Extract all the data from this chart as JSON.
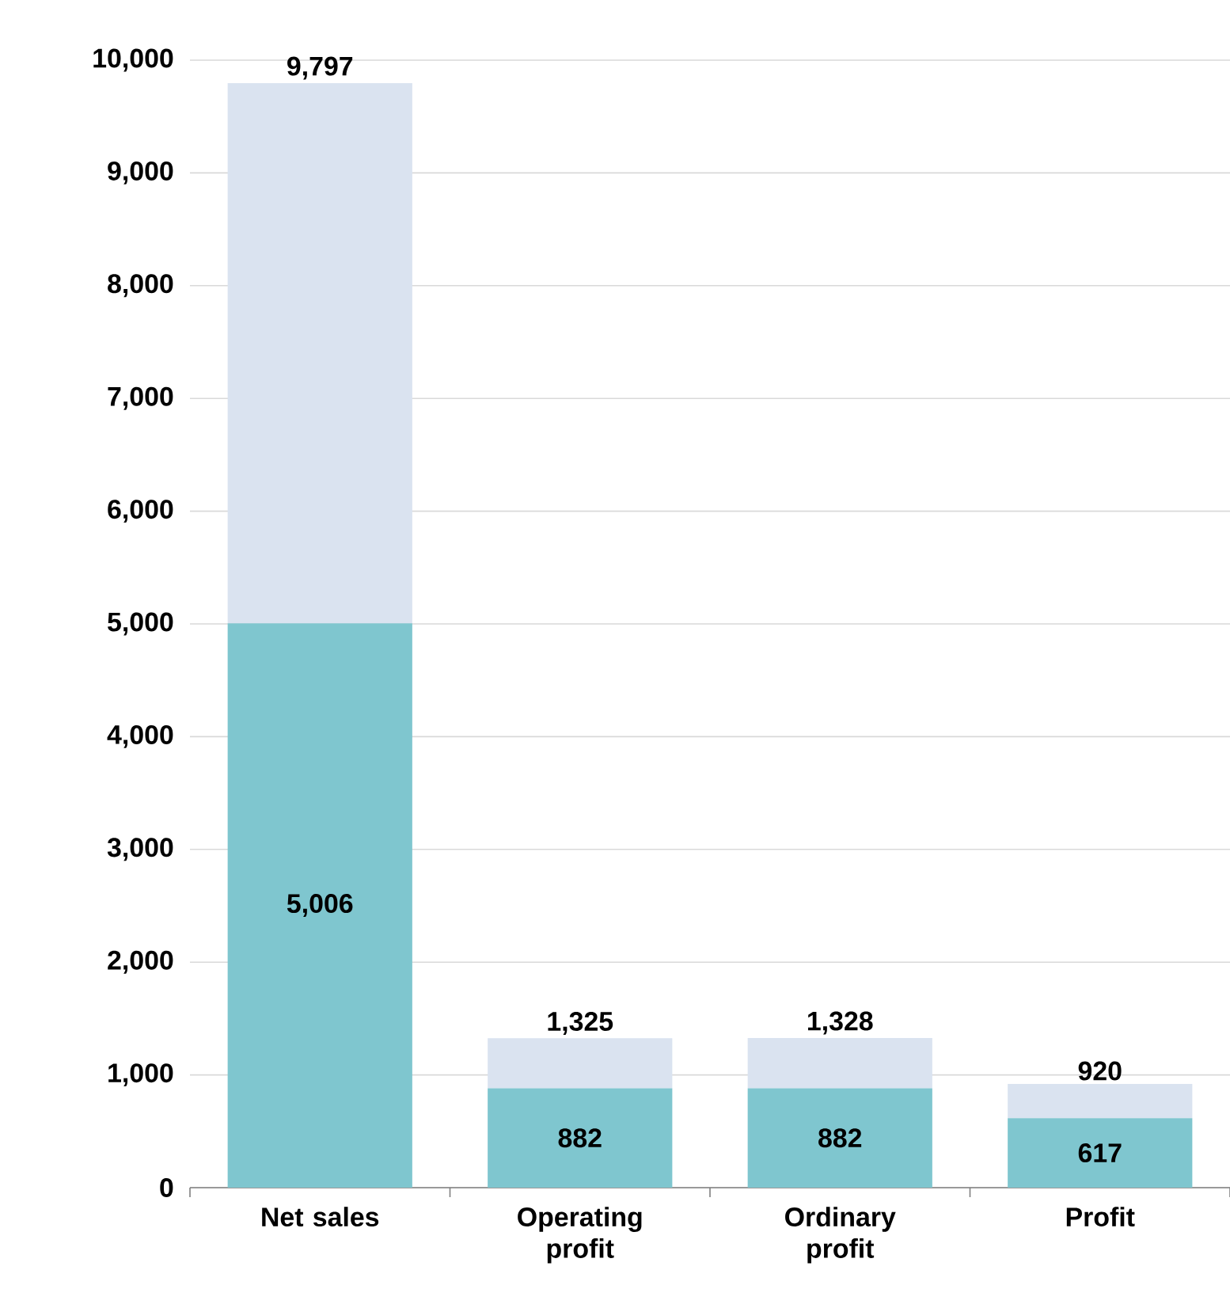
{
  "chart_data": {
    "type": "bar",
    "stacked": true,
    "categories": [
      "Net sales",
      "Operating profit",
      "Ordinary profit",
      "Profit"
    ],
    "series": [
      {
        "color": "#7fc6cf",
        "values": [
          5006,
          882,
          882,
          617
        ],
        "value_labels": [
          "5,006",
          "882",
          "882",
          "617"
        ]
      },
      {
        "color": "#dae3f0",
        "values": [
          4791,
          443,
          446,
          303
        ]
      }
    ],
    "totals": [
      "9,797",
      "1,325",
      "1,328",
      "920"
    ],
    "ylim": [
      0,
      10000
    ],
    "yticks": [
      0,
      {
        "value": 1000,
        "label": "1,000"
      },
      {
        "value": 2000,
        "label": "2,000"
      },
      {
        "value": 3000,
        "label": "3,000"
      },
      {
        "value": 4000,
        "label": "4,000"
      },
      {
        "value": 5000,
        "label": "5,000"
      },
      {
        "value": 6000,
        "label": "6,000"
      },
      {
        "value": 7000,
        "label": "7,000"
      },
      {
        "value": 8000,
        "label": "8,000"
      },
      {
        "value": 9000,
        "label": "9,000"
      },
      {
        "value": 10000,
        "label": "10,000"
      }
    ],
    "grid": "y"
  }
}
